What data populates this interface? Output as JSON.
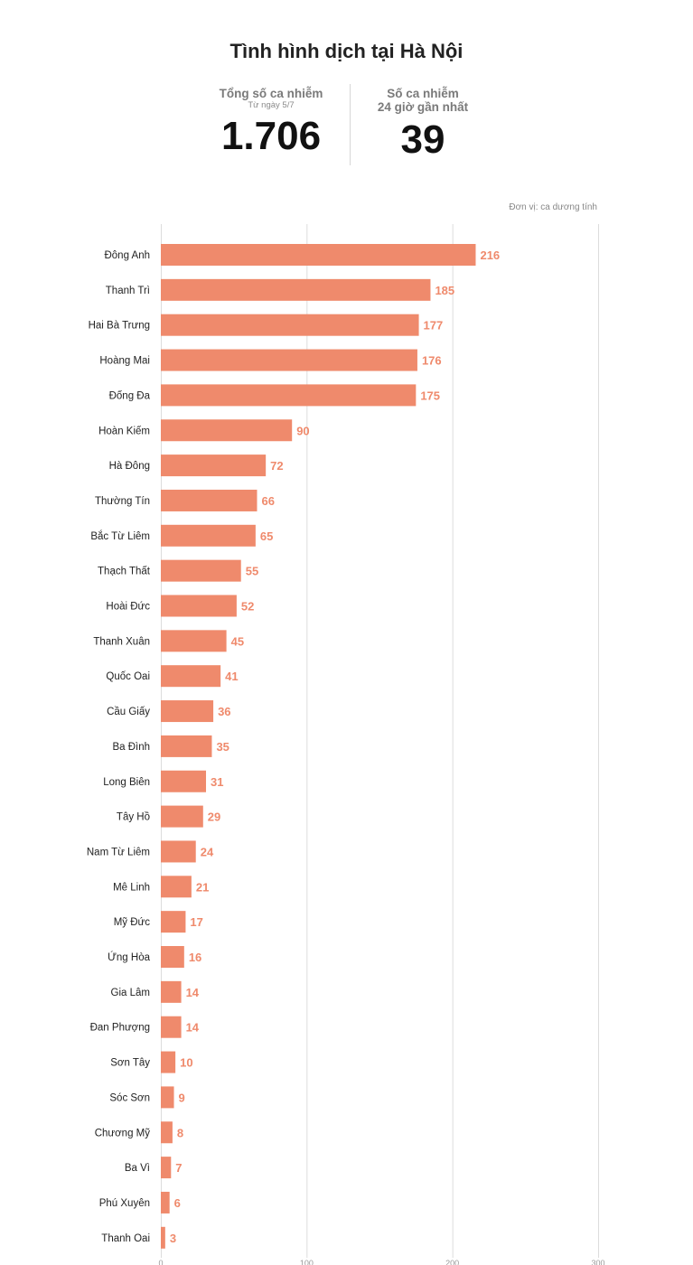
{
  "header": {
    "title": "Tình hình dịch tại Hà Nội",
    "total_label": "Tổng số ca nhiễm",
    "total_sublabel": "Từ ngày 5/7",
    "total_value": "1.706",
    "recent_label_line1": "Số ca nhiễm",
    "recent_label_line2": "24 giờ gần nhất",
    "recent_value": "39"
  },
  "unit_label": "Đơn vị: ca dương tính",
  "colors": {
    "bar": "#ef8a6c",
    "value_text": "#ef8a6c",
    "grid": "#dcdcdc"
  },
  "chart_data": {
    "type": "bar",
    "orientation": "horizontal",
    "categories": [
      "Đông Anh",
      "Thanh Trì",
      "Hai Bà Trưng",
      "Hoàng Mai",
      "Đống Đa",
      "Hoàn Kiếm",
      "Hà Đông",
      "Thường Tín",
      "Bắc Từ Liêm",
      "Thạch Thất",
      "Hoài Đức",
      "Thanh Xuân",
      "Quốc Oai",
      "Cầu Giấy",
      "Ba Đình",
      "Long Biên",
      "Tây Hồ",
      "Nam Từ Liêm",
      "Mê Linh",
      "Mỹ Đức",
      "Ứng Hòa",
      "Gia Lâm",
      "Đan Phượng",
      "Sơn Tây",
      "Sóc Sơn",
      "Chương Mỹ",
      "Ba Vì",
      "Phú Xuyên",
      "Thanh Oai"
    ],
    "values": [
      216,
      185,
      177,
      176,
      175,
      90,
      72,
      66,
      65,
      55,
      52,
      45,
      41,
      36,
      35,
      31,
      29,
      24,
      21,
      17,
      16,
      14,
      14,
      10,
      9,
      8,
      7,
      6,
      3
    ],
    "xlim": [
      0,
      300
    ],
    "xticks": [
      0,
      100,
      200,
      300
    ],
    "grid": true,
    "title": "",
    "xlabel": "",
    "ylabel": ""
  }
}
